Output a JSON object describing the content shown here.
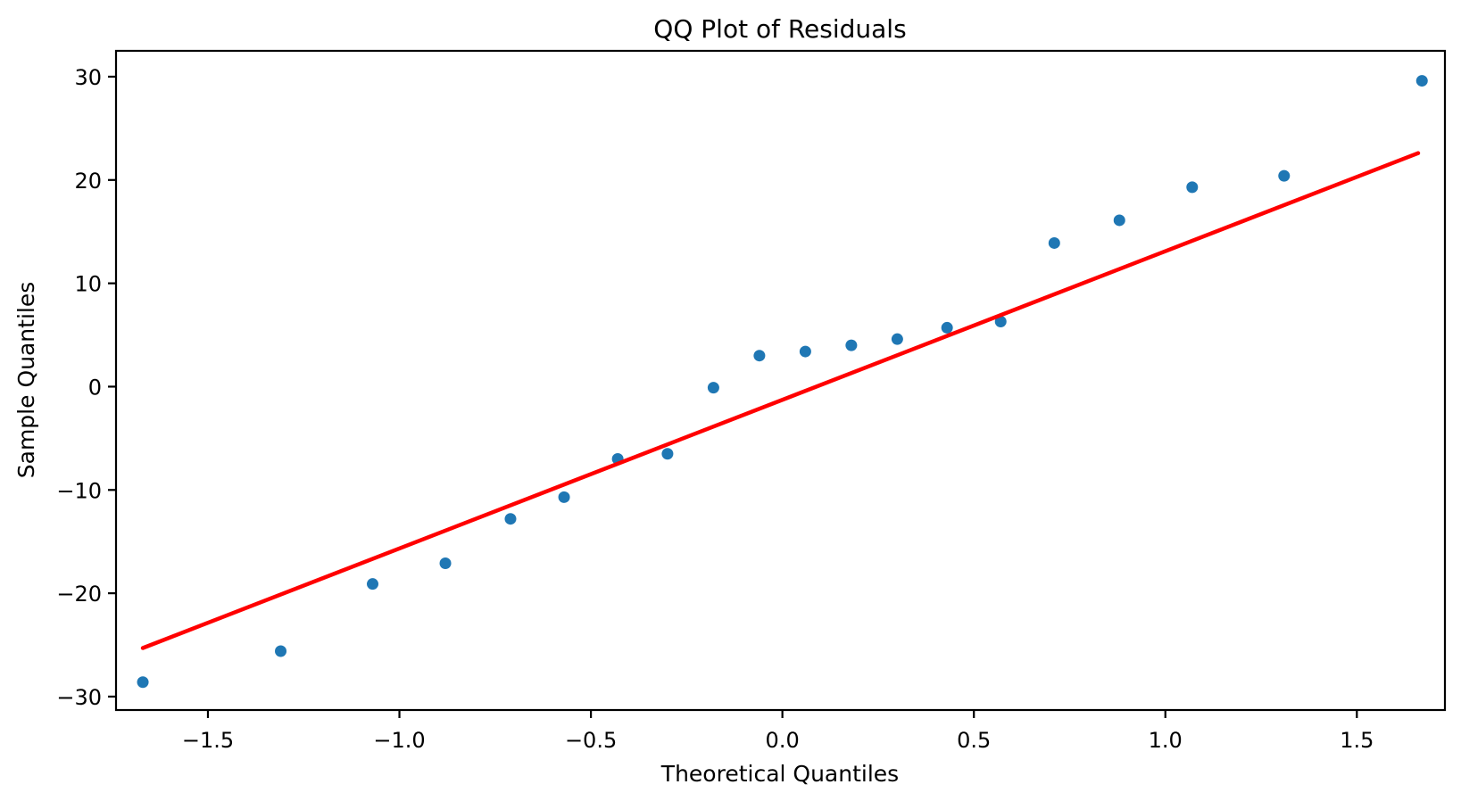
{
  "figure": {
    "background": "#ffffff"
  },
  "chart_data": {
    "type": "scatter",
    "title": "QQ Plot of Residuals",
    "xlabel": "Theoretical Quantiles",
    "ylabel": "Sample Quantiles",
    "xlim": [
      -1.74,
      1.73
    ],
    "ylim": [
      -31.3,
      32.5
    ],
    "x_ticks": [
      -1.5,
      -1.0,
      -0.5,
      0.0,
      0.5,
      1.0,
      1.5
    ],
    "y_ticks": [
      -30,
      -20,
      -10,
      0,
      10,
      20,
      30
    ],
    "grid": false,
    "legend": "none",
    "frame": true,
    "colors": {
      "points": "#1f77b4",
      "reference_line": "#ff0000",
      "axes": "#000000"
    },
    "series": [
      {
        "name": "residuals",
        "type": "scatter",
        "color": "#1f77b4",
        "marker": "circle",
        "marker_radius": 6.5,
        "x": [
          -1.67,
          -1.31,
          -1.07,
          -0.88,
          -0.71,
          -0.57,
          -0.43,
          -0.3,
          -0.18,
          -0.06,
          0.06,
          0.18,
          0.3,
          0.43,
          0.57,
          0.71,
          0.88,
          1.07,
          1.31,
          1.67
        ],
        "y": [
          -28.6,
          -25.6,
          -19.1,
          -17.1,
          -12.8,
          -10.7,
          -7.0,
          -6.5,
          -0.1,
          3.0,
          3.4,
          4.0,
          4.6,
          5.7,
          6.3,
          13.9,
          16.1,
          19.3,
          20.4,
          29.6
        ]
      },
      {
        "name": "reference-line",
        "type": "line",
        "color": "#ff0000",
        "line_width": 4.5,
        "x": [
          -1.67,
          1.66
        ],
        "y": [
          -25.3,
          22.6
        ]
      }
    ]
  }
}
